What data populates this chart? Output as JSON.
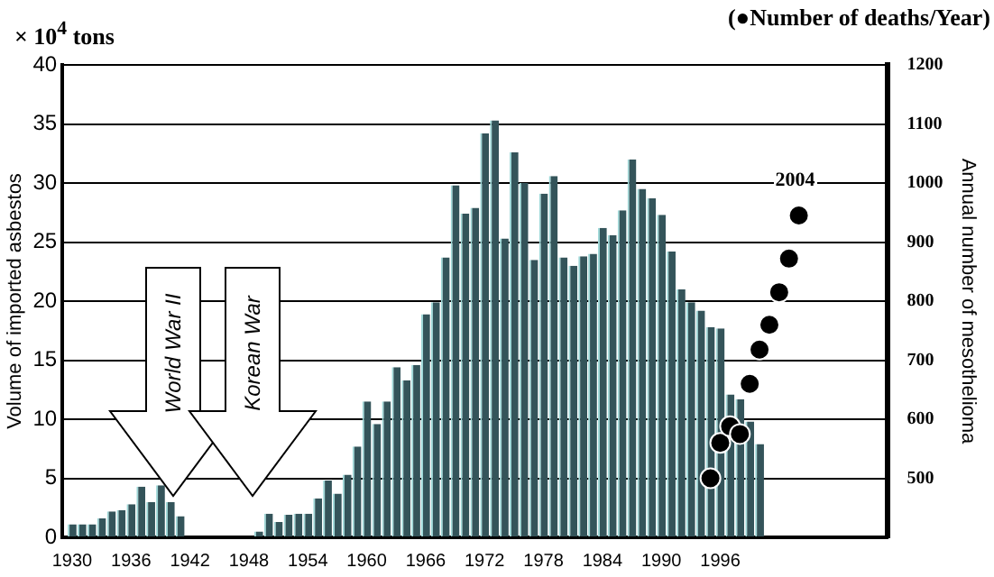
{
  "chart_data": {
    "type": "bar",
    "ylabel": "Volume of imported asbestos",
    "y2label": "Annual number of mesothelioma",
    "x": [
      1930,
      1931,
      1932,
      1933,
      1934,
      1935,
      1936,
      1937,
      1938,
      1939,
      1940,
      1941,
      1942,
      1943,
      1944,
      1945,
      1946,
      1947,
      1948,
      1949,
      1950,
      1951,
      1952,
      1953,
      1954,
      1955,
      1956,
      1957,
      1958,
      1959,
      1960,
      1961,
      1962,
      1963,
      1964,
      1965,
      1966,
      1967,
      1968,
      1969,
      1970,
      1971,
      1972,
      1973,
      1974,
      1975,
      1976,
      1977,
      1978,
      1979,
      1980,
      1981,
      1982,
      1983,
      1984,
      1985,
      1986,
      1987,
      1988,
      1989,
      1990,
      1991,
      1992,
      1993,
      1994,
      1995,
      1996,
      1997,
      1998,
      1999,
      2000
    ],
    "series": [
      {
        "color": "#34545a",
        "values": [
          1.1,
          1.1,
          1.1,
          1.6,
          2.2,
          2.3,
          2.8,
          4.3,
          3.0,
          4.4,
          3.0,
          1.8,
          0,
          0,
          0,
          0,
          0,
          0,
          0,
          0.5,
          2.0,
          1.3,
          1.9,
          2.0,
          2.0,
          3.3,
          4.8,
          3.7,
          5.3,
          7.7,
          11.5,
          9.6,
          11.5,
          14.4,
          13.3,
          14.6,
          18.9,
          19.9,
          23.7,
          29.8,
          27.4,
          27.9,
          34.2,
          35.3,
          25.3,
          32.6,
          30.0,
          23.5,
          29.1,
          30.6,
          23.7,
          23.0,
          23.8,
          24.0,
          26.2,
          25.6,
          27.7,
          32.0,
          29.5,
          28.7,
          27.3,
          24.2,
          21.0,
          19.9,
          19.2,
          17.8,
          17.7,
          12.1,
          11.7,
          9.8,
          7.9
        ]
      },
      {
        "type": "scatter",
        "color": "#000000",
        "axis": "y2",
        "x": [
          1995,
          1996,
          1997,
          1998,
          1999,
          2000,
          2001,
          2002,
          2003,
          2004
        ],
        "values": [
          500,
          560,
          588,
          575,
          660,
          718,
          760,
          815,
          872,
          945
        ]
      }
    ],
    "xlim": [
      1929,
      2013
    ],
    "xticks": [
      1930,
      1936,
      1942,
      1948,
      1954,
      1960,
      1966,
      1972,
      1978,
      1984,
      1990,
      1996
    ],
    "ylim": [
      0,
      40
    ],
    "yticks": [
      0,
      5,
      10,
      15,
      20,
      25,
      30,
      35,
      40
    ],
    "y2lim": [
      400,
      1200
    ],
    "y2ticks": [
      500,
      600,
      700,
      800,
      900,
      1000,
      1100,
      1200
    ],
    "grid": "y",
    "legend": false,
    "marker": "circle",
    "annotations": [
      "× 10$^{4}$ tons",
      "(●Number of deaths/Year)",
      "World War II",
      "Korean War",
      "2004"
    ]
  }
}
